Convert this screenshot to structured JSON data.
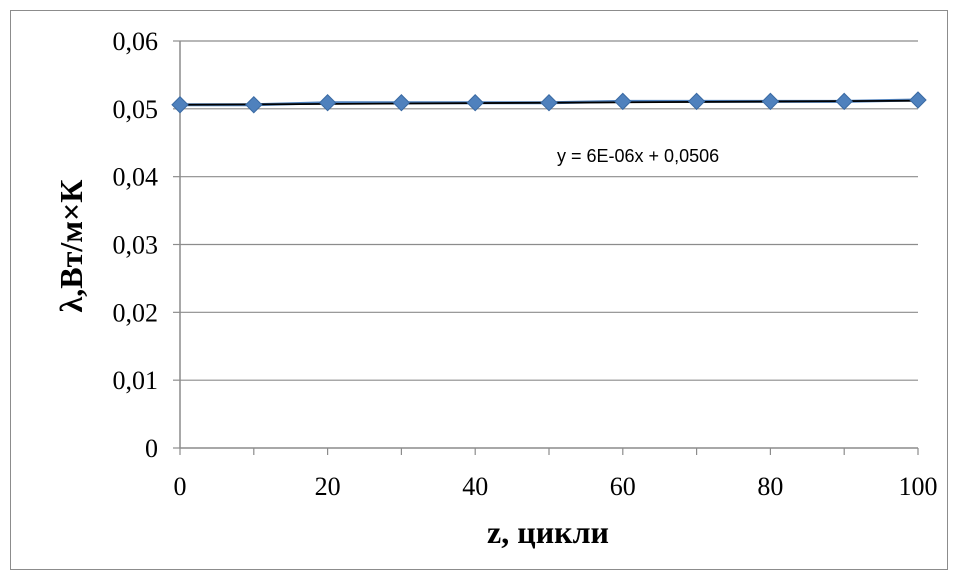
{
  "chart_data": {
    "type": "line",
    "xlabel": "z, цикли",
    "ylabel": "λ,Вт/м×К",
    "xlim": [
      0,
      100
    ],
    "ylim": [
      0,
      0.06
    ],
    "x_ticks": [
      "0",
      "20",
      "40",
      "60",
      "80",
      "100"
    ],
    "y_ticks": [
      "0",
      "0,01",
      "0,02",
      "0,03",
      "0,04",
      "0,05",
      "0,06"
    ],
    "grid": true,
    "legend": "none",
    "series": [
      {
        "x": [
          0,
          10,
          20,
          30,
          40,
          50,
          60,
          70,
          80,
          90,
          100
        ],
        "values": [
          0.0506,
          0.0506,
          0.0509,
          0.0509,
          0.0509,
          0.0509,
          0.0511,
          0.0511,
          0.0511,
          0.0511,
          0.0513
        ],
        "color": "#4f81bd",
        "marker": "diamond"
      }
    ],
    "trendline": {
      "slope": 6e-06,
      "intercept": 0.0506,
      "label": "y = 6E-06x + 0,0506",
      "color": "#000000"
    }
  }
}
